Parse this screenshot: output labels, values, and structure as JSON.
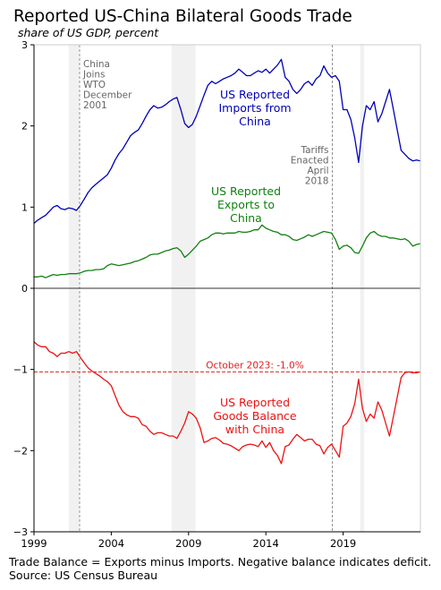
{
  "title": "Reported US-China Bilateral Goods Trade",
  "subtitle": "share of US GDP, percent",
  "footer": {
    "note": "Trade Balance = Exports minus Imports. Negative balance indicates deficit.",
    "source": "Source: US Census Bureau"
  },
  "chart_data": {
    "type": "line",
    "title": "Reported US-China Bilateral Goods Trade",
    "subtitle": "share of US GDP, percent",
    "xlabel": "",
    "ylabel": "",
    "xlim": [
      1999,
      2024.0
    ],
    "ylim": [
      -3,
      3
    ],
    "x_ticks": [
      1999,
      2004,
      2009,
      2014,
      2019
    ],
    "y_ticks": [
      -3,
      -2,
      -1,
      0,
      1,
      2,
      3
    ],
    "y_tick_labels": [
      "−3",
      "−2",
      "−1",
      "0",
      "1",
      "2",
      "3"
    ],
    "grid": false,
    "shaded_periods": [
      [
        2001.25,
        2001.9
      ],
      [
        2007.9,
        2009.45
      ],
      [
        2020.1,
        2020.35
      ]
    ],
    "events": [
      {
        "x": 2001.95,
        "lines": [
          "China",
          "Joins",
          "WTO",
          "December",
          "2001"
        ]
      },
      {
        "x": 2018.3,
        "lines": [
          "Tariffs",
          "Enacted",
          "April",
          "2018"
        ]
      }
    ],
    "reference_line": {
      "y": -1.03,
      "label": "October 2023: -1.0%",
      "color": "#e02020"
    },
    "series": [
      {
        "name": "US Reported Imports from China",
        "label_lines": [
          "US Reported",
          "Imports from",
          "China"
        ],
        "color": "#0000bb",
        "x": [
          1999.0,
          1999.25,
          1999.5,
          1999.75,
          2000.0,
          2000.25,
          2000.5,
          2000.75,
          2001.0,
          2001.25,
          2001.5,
          2001.75,
          2002.0,
          2002.25,
          2002.5,
          2002.75,
          2003.0,
          2003.25,
          2003.5,
          2003.75,
          2004.0,
          2004.25,
          2004.5,
          2004.75,
          2005.0,
          2005.25,
          2005.5,
          2005.75,
          2006.0,
          2006.25,
          2006.5,
          2006.75,
          2007.0,
          2007.25,
          2007.5,
          2007.75,
          2008.0,
          2008.25,
          2008.5,
          2008.75,
          2009.0,
          2009.25,
          2009.5,
          2009.75,
          2010.0,
          2010.25,
          2010.5,
          2010.75,
          2011.0,
          2011.25,
          2011.5,
          2011.75,
          2012.0,
          2012.25,
          2012.5,
          2012.75,
          2013.0,
          2013.25,
          2013.5,
          2013.75,
          2014.0,
          2014.25,
          2014.5,
          2014.75,
          2015.0,
          2015.25,
          2015.5,
          2015.75,
          2016.0,
          2016.25,
          2016.5,
          2016.75,
          2017.0,
          2017.25,
          2017.5,
          2017.75,
          2018.0,
          2018.25,
          2018.5,
          2018.75,
          2019.0,
          2019.25,
          2019.5,
          2019.75,
          2020.0,
          2020.25,
          2020.5,
          2020.75,
          2021.0,
          2021.25,
          2021.5,
          2021.75,
          2022.0,
          2022.25,
          2022.5,
          2022.75,
          2023.0,
          2023.25,
          2023.5,
          2023.75,
          2024.0
        ],
        "values": [
          0.8,
          0.84,
          0.87,
          0.9,
          0.95,
          1.0,
          1.02,
          0.98,
          0.97,
          0.99,
          0.98,
          0.96,
          1.02,
          1.1,
          1.18,
          1.24,
          1.28,
          1.32,
          1.36,
          1.4,
          1.48,
          1.58,
          1.66,
          1.72,
          1.8,
          1.88,
          1.92,
          1.95,
          2.03,
          2.12,
          2.2,
          2.25,
          2.22,
          2.23,
          2.26,
          2.3,
          2.33,
          2.35,
          2.2,
          2.03,
          1.98,
          2.02,
          2.12,
          2.25,
          2.38,
          2.5,
          2.55,
          2.52,
          2.55,
          2.58,
          2.6,
          2.62,
          2.65,
          2.7,
          2.66,
          2.62,
          2.62,
          2.65,
          2.68,
          2.66,
          2.7,
          2.65,
          2.7,
          2.75,
          2.82,
          2.6,
          2.55,
          2.45,
          2.4,
          2.45,
          2.52,
          2.55,
          2.5,
          2.58,
          2.62,
          2.74,
          2.65,
          2.6,
          2.62,
          2.55,
          2.2,
          2.2,
          2.08,
          1.85,
          1.55,
          2.0,
          2.25,
          2.2,
          2.3,
          2.05,
          2.15,
          2.3,
          2.45,
          2.2,
          1.95,
          1.7,
          1.65,
          1.6,
          1.57,
          1.58,
          1.57
        ]
      },
      {
        "name": "US Reported Exports to China",
        "label_lines": [
          "US Reported",
          "Exports to",
          "China"
        ],
        "color": "#108010",
        "x": [
          1999.0,
          1999.25,
          1999.5,
          1999.75,
          2000.0,
          2000.25,
          2000.5,
          2000.75,
          2001.0,
          2001.25,
          2001.5,
          2001.75,
          2002.0,
          2002.25,
          2002.5,
          2002.75,
          2003.0,
          2003.25,
          2003.5,
          2003.75,
          2004.0,
          2004.25,
          2004.5,
          2004.75,
          2005.0,
          2005.25,
          2005.5,
          2005.75,
          2006.0,
          2006.25,
          2006.5,
          2006.75,
          2007.0,
          2007.25,
          2007.5,
          2007.75,
          2008.0,
          2008.25,
          2008.5,
          2008.75,
          2009.0,
          2009.25,
          2009.5,
          2009.75,
          2010.0,
          2010.25,
          2010.5,
          2010.75,
          2011.0,
          2011.25,
          2011.5,
          2011.75,
          2012.0,
          2012.25,
          2012.5,
          2012.75,
          2013.0,
          2013.25,
          2013.5,
          2013.75,
          2014.0,
          2014.25,
          2014.5,
          2014.75,
          2015.0,
          2015.25,
          2015.5,
          2015.75,
          2016.0,
          2016.25,
          2016.5,
          2016.75,
          2017.0,
          2017.25,
          2017.5,
          2017.75,
          2018.0,
          2018.25,
          2018.5,
          2018.75,
          2019.0,
          2019.25,
          2019.5,
          2019.75,
          2020.0,
          2020.25,
          2020.5,
          2020.75,
          2021.0,
          2021.25,
          2021.5,
          2021.75,
          2022.0,
          2022.25,
          2022.5,
          2022.75,
          2023.0,
          2023.25,
          2023.5,
          2023.75,
          2024.0
        ],
        "values": [
          0.14,
          0.14,
          0.15,
          0.13,
          0.15,
          0.17,
          0.16,
          0.17,
          0.17,
          0.18,
          0.18,
          0.18,
          0.19,
          0.21,
          0.22,
          0.22,
          0.23,
          0.23,
          0.24,
          0.28,
          0.3,
          0.29,
          0.28,
          0.29,
          0.3,
          0.31,
          0.33,
          0.34,
          0.36,
          0.38,
          0.41,
          0.42,
          0.42,
          0.44,
          0.46,
          0.47,
          0.49,
          0.5,
          0.46,
          0.38,
          0.42,
          0.47,
          0.52,
          0.58,
          0.6,
          0.62,
          0.66,
          0.68,
          0.68,
          0.67,
          0.68,
          0.68,
          0.68,
          0.7,
          0.69,
          0.69,
          0.7,
          0.72,
          0.72,
          0.78,
          0.74,
          0.72,
          0.7,
          0.69,
          0.66,
          0.66,
          0.64,
          0.6,
          0.59,
          0.61,
          0.63,
          0.66,
          0.64,
          0.66,
          0.68,
          0.7,
          0.69,
          0.68,
          0.6,
          0.48,
          0.52,
          0.53,
          0.5,
          0.44,
          0.43,
          0.52,
          0.62,
          0.68,
          0.7,
          0.66,
          0.64,
          0.64,
          0.62,
          0.62,
          0.61,
          0.6,
          0.61,
          0.58,
          0.52,
          0.54,
          0.55
        ]
      },
      {
        "name": "US Reported Goods Balance with China",
        "label_lines": [
          "US Reported",
          "Goods Balance",
          "with China"
        ],
        "color": "#ee1111",
        "x": [
          1999.0,
          1999.25,
          1999.5,
          1999.75,
          2000.0,
          2000.25,
          2000.5,
          2000.75,
          2001.0,
          2001.25,
          2001.5,
          2001.75,
          2002.0,
          2002.25,
          2002.5,
          2002.75,
          2003.0,
          2003.25,
          2003.5,
          2003.75,
          2004.0,
          2004.25,
          2004.5,
          2004.75,
          2005.0,
          2005.25,
          2005.5,
          2005.75,
          2006.0,
          2006.25,
          2006.5,
          2006.75,
          2007.0,
          2007.25,
          2007.5,
          2007.75,
          2008.0,
          2008.25,
          2008.5,
          2008.75,
          2009.0,
          2009.25,
          2009.5,
          2009.75,
          2010.0,
          2010.25,
          2010.5,
          2010.75,
          2011.0,
          2011.25,
          2011.5,
          2011.75,
          2012.0,
          2012.25,
          2012.5,
          2012.75,
          2013.0,
          2013.25,
          2013.5,
          2013.75,
          2014.0,
          2014.25,
          2014.5,
          2014.75,
          2015.0,
          2015.25,
          2015.5,
          2015.75,
          2016.0,
          2016.25,
          2016.5,
          2016.75,
          2017.0,
          2017.25,
          2017.5,
          2017.75,
          2018.0,
          2018.25,
          2018.5,
          2018.75,
          2019.0,
          2019.25,
          2019.5,
          2019.75,
          2020.0,
          2020.25,
          2020.5,
          2020.75,
          2021.0,
          2021.25,
          2021.5,
          2021.75,
          2022.0,
          2022.25,
          2022.5,
          2022.75,
          2023.0,
          2023.25,
          2023.5,
          2023.75,
          2024.0
        ],
        "values": [
          -0.66,
          -0.7,
          -0.72,
          -0.72,
          -0.78,
          -0.8,
          -0.84,
          -0.8,
          -0.8,
          -0.78,
          -0.8,
          -0.78,
          -0.85,
          -0.92,
          -0.98,
          -1.02,
          -1.05,
          -1.08,
          -1.12,
          -1.15,
          -1.2,
          -1.32,
          -1.44,
          -1.52,
          -1.56,
          -1.58,
          -1.58,
          -1.6,
          -1.68,
          -1.7,
          -1.76,
          -1.8,
          -1.78,
          -1.78,
          -1.8,
          -1.82,
          -1.82,
          -1.85,
          -1.76,
          -1.66,
          -1.52,
          -1.55,
          -1.6,
          -1.72,
          -1.9,
          -1.88,
          -1.85,
          -1.84,
          -1.87,
          -1.91,
          -1.92,
          -1.94,
          -1.97,
          -2.0,
          -1.95,
          -1.93,
          -1.92,
          -1.93,
          -1.95,
          -1.88,
          -1.96,
          -1.9,
          -2.0,
          -2.06,
          -2.16,
          -1.95,
          -1.93,
          -1.86,
          -1.8,
          -1.84,
          -1.88,
          -1.86,
          -1.86,
          -1.92,
          -1.94,
          -2.04,
          -1.96,
          -1.92,
          -2.0,
          -2.08,
          -1.7,
          -1.66,
          -1.58,
          -1.42,
          -1.12,
          -1.48,
          -1.64,
          -1.55,
          -1.6,
          -1.4,
          -1.5,
          -1.66,
          -1.82,
          -1.58,
          -1.34,
          -1.1,
          -1.04,
          -1.03,
          -1.04,
          -1.04,
          -1.03
        ]
      }
    ]
  }
}
